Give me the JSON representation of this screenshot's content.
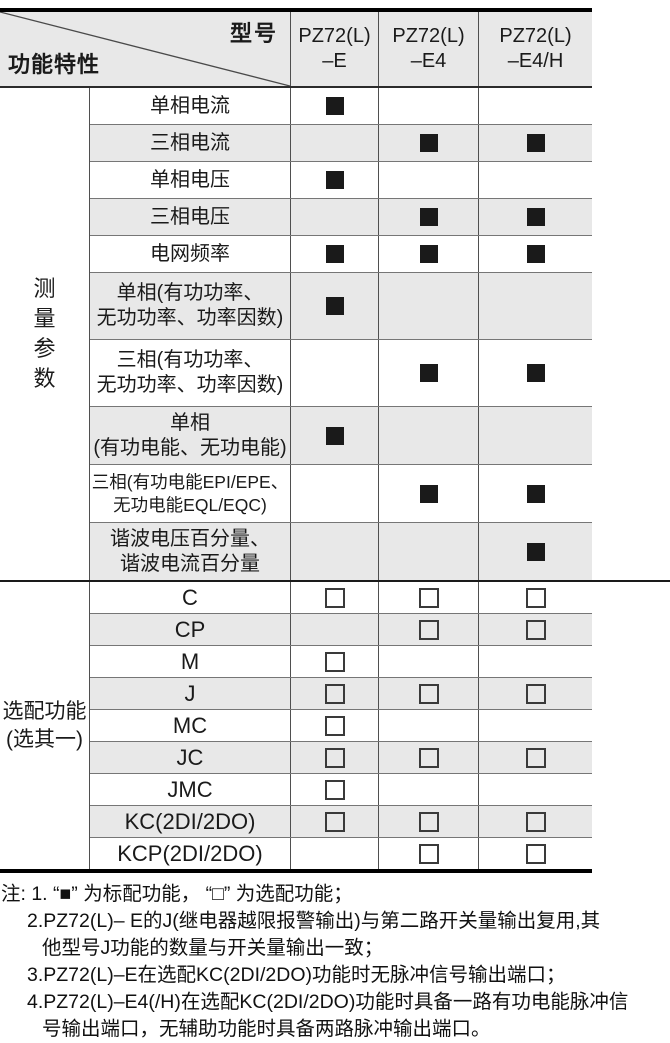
{
  "header": {
    "corner_top_label": "型号",
    "corner_bottom_label": "功能特性",
    "model_columns": [
      "PZ72(L)\n–E",
      "PZ72(L)\n–E4",
      "PZ72(L)\n–E4/H"
    ]
  },
  "sections": [
    {
      "group_label": "测量参数",
      "orientation": "vertical",
      "mark_style": "filled",
      "rows": [
        {
          "label": "单相电流",
          "size": "single",
          "marks": [
            true,
            false,
            false
          ]
        },
        {
          "label": "三相电流",
          "size": "single",
          "marks": [
            false,
            true,
            true
          ]
        },
        {
          "label": "单相电压",
          "size": "single",
          "marks": [
            true,
            false,
            false
          ]
        },
        {
          "label": "三相电压",
          "size": "single",
          "marks": [
            false,
            true,
            true
          ]
        },
        {
          "label": "电网频率",
          "size": "single",
          "marks": [
            true,
            true,
            true
          ]
        },
        {
          "label": "单相(有功功率、\n无功功率、功率因数)",
          "size": "tall",
          "marks": [
            true,
            false,
            false
          ]
        },
        {
          "label": "三相(有功功率、\n无功功率、功率因数)",
          "size": "tall",
          "marks": [
            false,
            true,
            true
          ]
        },
        {
          "label": "单相\n(有功电能、无功电能)",
          "size": "medium",
          "marks": [
            true,
            false,
            false
          ]
        },
        {
          "label": "三相(有功电能EPI/EPE、\n无功电能EQL/EQC)",
          "size": "medium",
          "marks": [
            false,
            true,
            true
          ]
        },
        {
          "label": "谐波电压百分量、\n谐波电流百分量",
          "size": "medium",
          "marks": [
            false,
            false,
            true
          ]
        }
      ]
    },
    {
      "group_label": "选配功能\n(选其一)",
      "orientation": "two-line",
      "mark_style": "hollow",
      "rows": [
        {
          "label": "C",
          "size": "option",
          "marks": [
            true,
            true,
            true
          ]
        },
        {
          "label": "CP",
          "size": "option",
          "marks": [
            false,
            true,
            true
          ]
        },
        {
          "label": "M",
          "size": "option",
          "marks": [
            true,
            false,
            false
          ]
        },
        {
          "label": "J",
          "size": "option",
          "marks": [
            true,
            true,
            true
          ]
        },
        {
          "label": "MC",
          "size": "option",
          "marks": [
            true,
            false,
            false
          ]
        },
        {
          "label": "JC",
          "size": "option",
          "marks": [
            true,
            true,
            true
          ]
        },
        {
          "label": "JMC",
          "size": "option",
          "marks": [
            true,
            false,
            false
          ]
        },
        {
          "label": "KC(2DI/2DO)",
          "size": "option",
          "marks": [
            true,
            true,
            true
          ]
        },
        {
          "label": "KCP(2DI/2DO)",
          "size": "option",
          "marks": [
            false,
            true,
            true
          ]
        }
      ]
    }
  ],
  "notes": {
    "lines": [
      {
        "text": "注: 1. “■” 为标配功能， “□” 为选配功能；",
        "indent": 0
      },
      {
        "text": "2.PZ72(L)– E的J(继电器越限报警输出)与第二路开关量输出复用,其",
        "indent": 1
      },
      {
        "text": "他型号J功能的数量与开关量输出一致；",
        "indent": 2
      },
      {
        "text": "3.PZ72(L)–E在选配KC(2DI/2DO)功能时无脉冲信号输出端口；",
        "indent": 1
      },
      {
        "text": "4.PZ72(L)–E4(/H)在选配KC(2DI/2DO)功能时具备一路有功电能脉冲信",
        "indent": 1
      },
      {
        "text": "号输出端口，无辅助功能时具备两路脉冲输出端口。",
        "indent": 2
      }
    ]
  },
  "colors": {
    "shade": "#e8e8e8",
    "filled_square": "#1a1a1a",
    "heavy_line": "#000000",
    "grid_line": "#4f4f4f"
  }
}
